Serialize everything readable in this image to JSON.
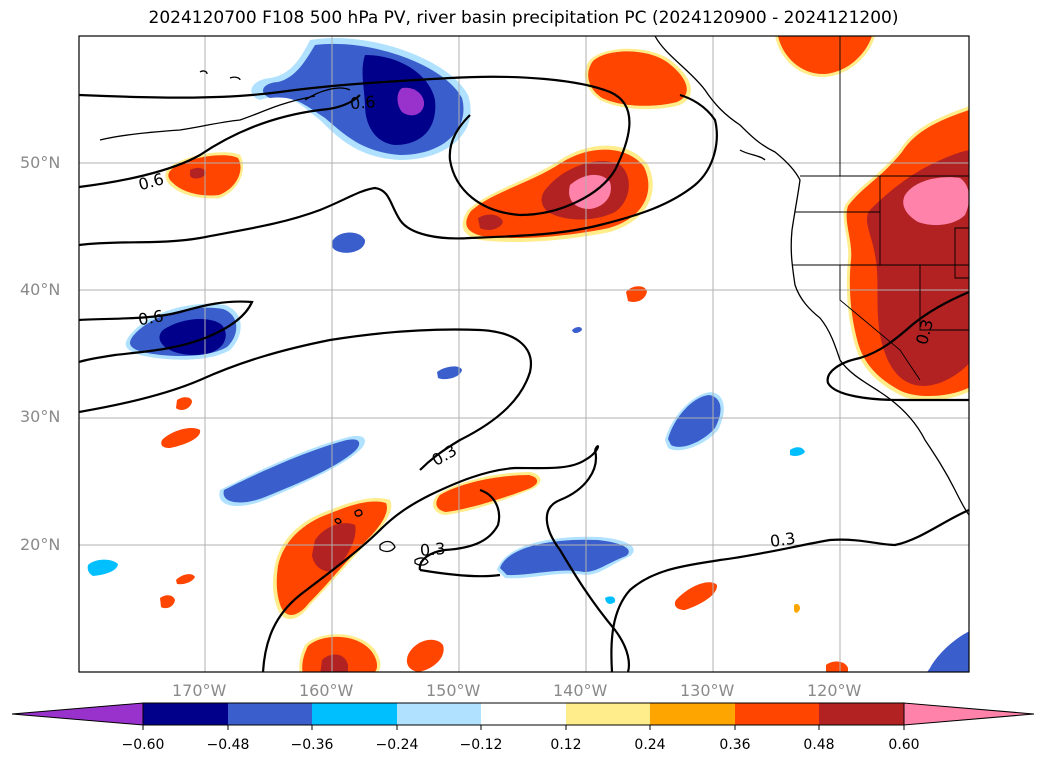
{
  "title": "2024120700 F108 500 hPa PV, river basin precipitation PC (2024120900 - 2024121200)",
  "lat_labels": [
    "50°N",
    "40°N",
    "30°N",
    "20°N"
  ],
  "lon_labels": [
    "170°W",
    "160°W",
    "150°W",
    "140°W",
    "130°W",
    "120°W"
  ],
  "contour_labels": [
    "0.6",
    "0.6",
    "0.6",
    "0.3",
    "0.3",
    "0.3",
    "0.3"
  ],
  "colorbar": {
    "ticks": [
      "−0.60",
      "−0.48",
      "−0.36",
      "−0.24",
      "−0.12",
      "0.12",
      "0.24",
      "0.36",
      "0.48",
      "0.60"
    ],
    "colors": [
      "#9932cc",
      "#00008b",
      "#3a5fcd",
      "#00bfff",
      "#b0e2ff",
      "#ffffff",
      "#ffec8b",
      "#ffa500",
      "#ff4500",
      "#b22222",
      "#ff82ab"
    ]
  }
}
